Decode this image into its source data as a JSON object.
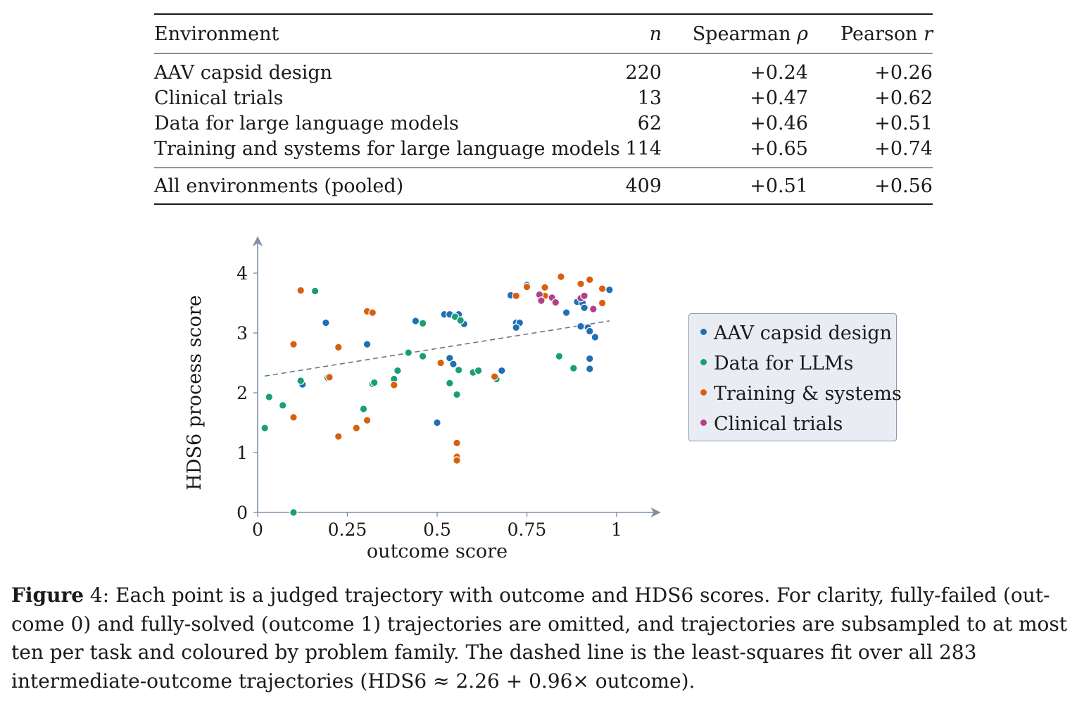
{
  "table": {
    "headers": {
      "environment": "Environment",
      "n": "n",
      "spearman_prefix": "Spearman ",
      "spearman_sym": "ρ",
      "pearson_prefix": "Pearson ",
      "pearson_sym": "r"
    },
    "rows": [
      {
        "environment": "AAV capsid design",
        "n": "220",
        "spearman": "+0.24",
        "pearson": "+0.26"
      },
      {
        "environment": "Clinical trials",
        "n": "13",
        "spearman": "+0.47",
        "pearson": "+0.62"
      },
      {
        "environment": "Data for large language models",
        "n": "62",
        "spearman": "+0.46",
        "pearson": "+0.51"
      },
      {
        "environment": "Training and systems for large language models",
        "n": "114",
        "spearman": "+0.65",
        "pearson": "+0.74"
      }
    ],
    "pooled": {
      "environment": "All environments (pooled)",
      "n": "409",
      "spearman": "+0.51",
      "pearson": "+0.56"
    }
  },
  "chart_data": {
    "type": "scatter",
    "xlabel": "outcome score",
    "ylabel": "HDS6 process score",
    "xlim": [
      0,
      1.12
    ],
    "ylim": [
      0,
      4.6
    ],
    "xticks": [
      0,
      0.25,
      0.5,
      0.75,
      1
    ],
    "xtick_labels": [
      "0",
      "0.25",
      "0.5",
      "0.75",
      "1"
    ],
    "yticks": [
      0,
      1,
      2,
      3,
      4
    ],
    "ytick_labels": [
      "0",
      "1",
      "2",
      "3",
      "4"
    ],
    "grid": false,
    "legend_position": "right",
    "fit_line": {
      "intercept": 2.26,
      "slope": 0.96,
      "x_range": [
        0.02,
        0.98
      ],
      "color": "#66758a",
      "style": "dashed"
    },
    "series": [
      {
        "name": "AAV capsid design",
        "color": "#1f6fb5",
        "points": [
          [
            0.19,
            3.17
          ],
          [
            0.125,
            2.14
          ],
          [
            0.305,
            2.81
          ],
          [
            0.44,
            3.2
          ],
          [
            0.52,
            3.31
          ],
          [
            0.535,
            3.31
          ],
          [
            0.56,
            3.31
          ],
          [
            0.575,
            3.15
          ],
          [
            0.535,
            2.58
          ],
          [
            0.545,
            2.48
          ],
          [
            0.5,
            1.5
          ],
          [
            0.68,
            2.37
          ],
          [
            0.705,
            3.63
          ],
          [
            0.72,
            3.17
          ],
          [
            0.73,
            3.17
          ],
          [
            0.72,
            3.09
          ],
          [
            0.75,
            3.8
          ],
          [
            0.86,
            3.34
          ],
          [
            0.89,
            3.52
          ],
          [
            0.905,
            3.5
          ],
          [
            0.91,
            3.42
          ],
          [
            0.9,
            3.11
          ],
          [
            0.92,
            3.09
          ],
          [
            0.925,
            3.03
          ],
          [
            0.94,
            2.93
          ],
          [
            0.925,
            2.57
          ],
          [
            0.925,
            2.4
          ],
          [
            0.98,
            3.72
          ]
        ]
      },
      {
        "name": "Data for LLMs",
        "color": "#1a9e77",
        "points": [
          [
            0.02,
            1.41
          ],
          [
            0.032,
            1.93
          ],
          [
            0.07,
            1.79
          ],
          [
            0.1,
            0.0
          ],
          [
            0.12,
            2.2
          ],
          [
            0.16,
            3.7
          ],
          [
            0.195,
            2.25
          ],
          [
            0.295,
            1.73
          ],
          [
            0.32,
            2.15
          ],
          [
            0.325,
            2.17
          ],
          [
            0.38,
            2.23
          ],
          [
            0.39,
            2.37
          ],
          [
            0.42,
            2.67
          ],
          [
            0.46,
            2.61
          ],
          [
            0.46,
            3.16
          ],
          [
            0.535,
            2.16
          ],
          [
            0.55,
            3.27
          ],
          [
            0.555,
            1.97
          ],
          [
            0.56,
            2.38
          ],
          [
            0.565,
            3.21
          ],
          [
            0.6,
            2.34
          ],
          [
            0.615,
            2.37
          ],
          [
            0.665,
            2.23
          ],
          [
            0.84,
            2.61
          ],
          [
            0.88,
            2.41
          ]
        ]
      },
      {
        "name": "Training & systems",
        "color": "#d95f0e",
        "points": [
          [
            0.1,
            2.81
          ],
          [
            0.1,
            1.59
          ],
          [
            0.12,
            3.71
          ],
          [
            0.2,
            2.26
          ],
          [
            0.225,
            2.76
          ],
          [
            0.225,
            1.27
          ],
          [
            0.275,
            1.41
          ],
          [
            0.305,
            1.54
          ],
          [
            0.305,
            3.36
          ],
          [
            0.32,
            3.34
          ],
          [
            0.38,
            2.13
          ],
          [
            0.51,
            2.5
          ],
          [
            0.555,
            1.16
          ],
          [
            0.555,
            0.93
          ],
          [
            0.555,
            0.87
          ],
          [
            0.66,
            2.27
          ],
          [
            0.72,
            3.62
          ],
          [
            0.75,
            3.77
          ],
          [
            0.8,
            3.76
          ],
          [
            0.8,
            3.62
          ],
          [
            0.845,
            3.94
          ],
          [
            0.9,
            3.82
          ],
          [
            0.925,
            3.89
          ],
          [
            0.96,
            3.74
          ],
          [
            0.96,
            3.5
          ]
        ]
      },
      {
        "name": "Clinical trials",
        "color": "#b3408a",
        "points": [
          [
            0.785,
            3.64
          ],
          [
            0.79,
            3.54
          ],
          [
            0.82,
            3.59
          ],
          [
            0.83,
            3.51
          ],
          [
            0.9,
            3.58
          ],
          [
            0.91,
            3.62
          ],
          [
            0.935,
            3.4
          ]
        ]
      }
    ]
  },
  "caption": {
    "label": "Figure",
    "number": " 4",
    "text": ": Each point is a judged trajectory with outcome and HDS6 scores. For clarity, fully-failed (out-come 0) and fully-solved (outcome 1) trajectories are omitted, and trajectories are subsampled to at most ten per task and coloured by problem family. The dashed line is the least-squares fit over all 283 intermediate-outcome trajectories (HDS6 ≈ 2.26 + 0.96× outcome)."
  }
}
